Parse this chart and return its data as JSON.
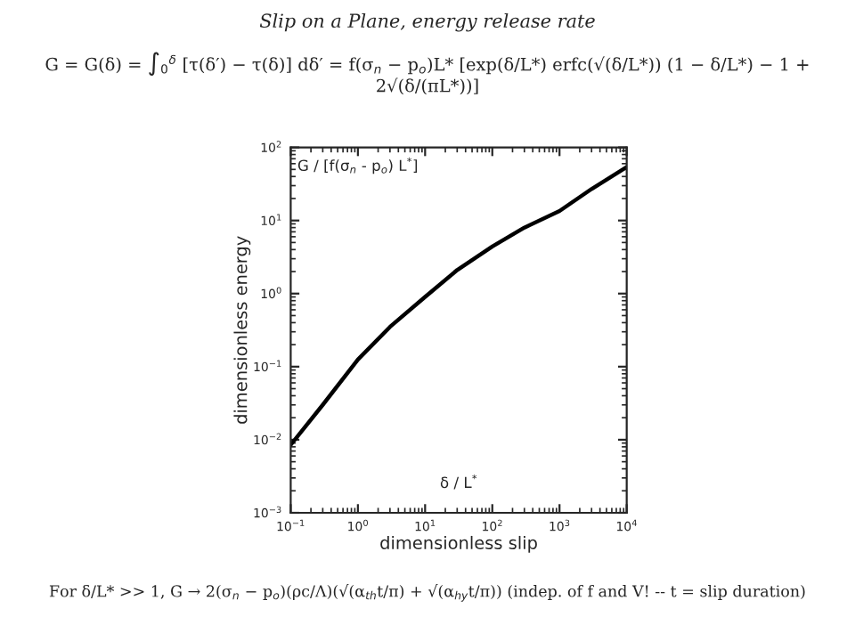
{
  "chart_data": {
    "type": "line",
    "title": "Slip on a Plane, energy release rate",
    "xlabel": "dimensionless slip",
    "ylabel": "dimensionless energy",
    "annotations": [
      "G = G(δ) = ∫$_{0}$$^{δ}$ [τ(δ′) − τ(δ)] dδ′ = f(σ$_{n}$ − p$_{o}$)L* [exp(δ/L*) erfc(√(δ/L*)) (1 − δ/L*) − 1 + 2√(δ/(πL*))]",
      "G / [f(σ$_{n}$ - p$_{o}$) L$^{*}$]",
      "δ / L$^{*}$",
      "For δ/L* >> 1, G → 2(σ$_{n}$ − p$_{o}$)(ρc/Λ)(√(α$_{th}$t/π) + √(α$_{hy}$t/π)) (indep. of f and V! -- t = slip duration)"
    ],
    "x": [
      0.1,
      0.3,
      1,
      3,
      10,
      30,
      100,
      300,
      1000,
      3000,
      10000
    ],
    "series": [
      {
        "color": "#000000",
        "values": [
          0.0085,
          0.03,
          0.125,
          0.35,
          0.9,
          2.1,
          4.4,
          8,
          13.5,
          27,
          54
        ]
      }
    ],
    "log": "xy",
    "xlim": [
      0.1,
      10000
    ],
    "ylim": [
      0.001,
      100
    ],
    "xticks": [
      {
        "value": 0.1,
        "label": "10$^{−1}$"
      },
      {
        "value": 1,
        "label": "10$^{0}$"
      },
      {
        "value": 10,
        "label": "10$^{1}$"
      },
      {
        "value": 100,
        "label": "10$^{2}$"
      },
      {
        "value": 1000,
        "label": "10$^{3}$"
      },
      {
        "value": 10000,
        "label": "10$^{4}$"
      }
    ],
    "yticks": [
      {
        "value": 0.001,
        "label": "10$^{−3}$"
      },
      {
        "value": 0.01,
        "label": "10$^{−2}$"
      },
      {
        "value": 0.1,
        "label": "10$^{−1}$"
      },
      {
        "value": 1,
        "label": "10$^{0}$"
      },
      {
        "value": 10,
        "label": "10$^{1}$"
      },
      {
        "value": 100,
        "label": "10$^{2}$"
      }
    ],
    "grid": false,
    "legend": false,
    "marker": "none",
    "line_style": "solid"
  }
}
